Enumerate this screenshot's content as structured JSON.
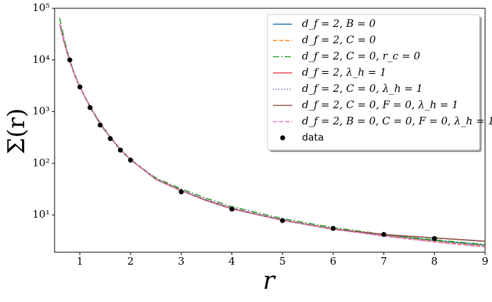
{
  "chart_data": {
    "type": "line",
    "x_label": "r",
    "y_label": "Σ(r)",
    "log_y": true,
    "xlim": [
      0.5,
      9
    ],
    "xticks": [
      1,
      2,
      3,
      4,
      5,
      6,
      7,
      8,
      9
    ],
    "ylim": [
      1.9,
      100000
    ],
    "yticks": [
      {
        "value": 10,
        "label": "10¹"
      },
      {
        "value": 100,
        "label": "10²"
      },
      {
        "value": 1000,
        "label": "10³"
      },
      {
        "value": 10000,
        "label": "10⁴"
      },
      {
        "value": 100000,
        "label": "10⁵"
      }
    ],
    "legend": "upper right",
    "x": [
      0.6,
      0.7,
      0.8,
      0.9,
      1,
      1.2,
      1.4,
      1.6,
      1.8,
      2,
      2.5,
      3,
      3.5,
      4,
      5,
      6,
      7,
      8,
      9
    ],
    "series": [
      {
        "name": "d_f = 2, B = 0",
        "color": "#1f77b4",
        "linestyle": "solid",
        "values": [
          50000,
          20000,
          9500,
          5000,
          3000,
          1250,
          600,
          320,
          185,
          118,
          50,
          30,
          19.5,
          13.5,
          8,
          5.4,
          4.1,
          3.2,
          2.6
        ]
      },
      {
        "name": "d_f = 2, C = 0",
        "color": "#ff7f0e",
        "linestyle": "dashed",
        "values": [
          50000,
          20000,
          9500,
          5000,
          3000,
          1250,
          600,
          320,
          185,
          118,
          50,
          30,
          19.5,
          13.5,
          8,
          5.4,
          4.0,
          3.1,
          2.5
        ]
      },
      {
        "name": "d_f = 2, C = 0, r_c = 0",
        "color": "#2ca02c",
        "linestyle": "dashdot",
        "values": [
          65000,
          23000,
          10000,
          5200,
          3000,
          1200,
          570,
          310,
          180,
          116,
          52,
          32,
          21,
          14.5,
          8.5,
          5.7,
          4.2,
          3.3,
          2.7
        ]
      },
      {
        "name": "d_f = 2, λ_h = 1",
        "color": "#e8414e",
        "linestyle": "solid",
        "values": [
          50000,
          20000,
          9500,
          5000,
          3000,
          1250,
          600,
          320,
          185,
          118,
          49,
          29.5,
          19,
          13.2,
          7.9,
          5.3,
          4.2,
          3.6,
          3.1
        ]
      },
      {
        "name": "d_f = 2, C = 0, λ_h = 1",
        "color": "#9467bd",
        "linestyle": "dotted",
        "values": [
          50000,
          20000,
          9500,
          5000,
          3000,
          1250,
          600,
          320,
          185,
          118,
          50,
          30,
          19.5,
          13.5,
          8,
          5.3,
          3.9,
          3.0,
          2.4
        ]
      },
      {
        "name": "d_f = 2, C = 0, F = 0, λ_h = 1",
        "color": "#8c564b",
        "linestyle": "solid",
        "values": [
          50000,
          20000,
          9500,
          5000,
          3000,
          1250,
          600,
          320,
          185,
          118,
          49,
          29.5,
          19,
          13.2,
          7.9,
          5.3,
          4.2,
          3.6,
          3.1
        ]
      },
      {
        "name": "d_f = 2, B = 0, C = 0, F = 0, λ_h = 1",
        "color": "#e377c2",
        "linestyle": "dashed",
        "values": [
          50000,
          20000,
          9500,
          5000,
          3000,
          1250,
          600,
          320,
          185,
          118,
          50,
          30,
          19.5,
          13.5,
          8,
          5.3,
          3.9,
          3.0,
          2.4
        ]
      }
    ],
    "points": {
      "name": "data",
      "color": "#000000",
      "x": [
        0.8,
        1,
        1.2,
        1.4,
        1.6,
        1.8,
        2,
        3,
        4,
        5,
        6,
        7,
        8
      ],
      "values": [
        10000,
        3000,
        1200,
        550,
        300,
        180,
        115,
        28,
        13,
        7.8,
        5.5,
        4.2,
        3.5
      ]
    }
  }
}
